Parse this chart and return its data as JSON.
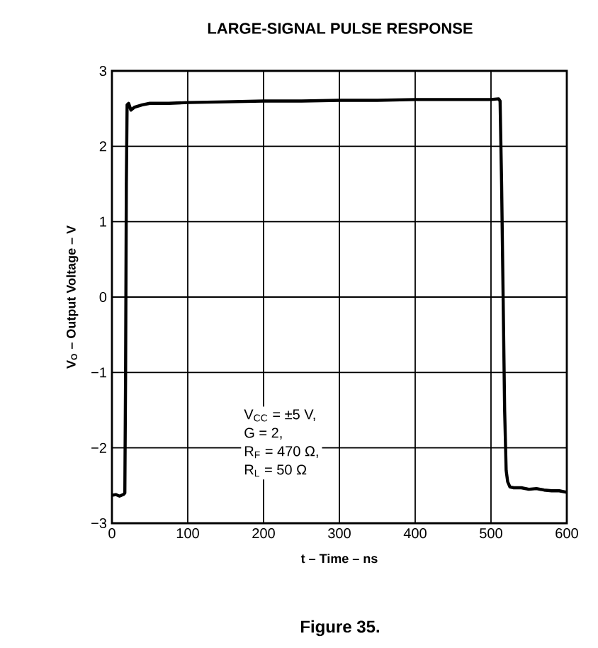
{
  "chart_data": {
    "type": "line",
    "title": "LARGE-SIGNAL PULSE RESPONSE",
    "xlabel": "t – Time – ns",
    "ylabel": "V$_{O}$ – Output Voltage – V",
    "annotations": [
      "V$_{CC}$ = ±5 V,",
      "G = 2,",
      "R$_{F}$ = 470 Ω,",
      "R$_{L}$ = 50 Ω",
      "Figure 35."
    ],
    "series": [
      {
        "color": "#000000",
        "x": [
          0,
          5,
          10,
          15,
          17,
          18,
          19,
          20,
          22,
          25,
          30,
          40,
          50,
          75,
          100,
          150,
          200,
          250,
          300,
          350,
          400,
          450,
          500,
          510,
          512,
          514,
          516,
          518,
          520,
          522,
          525,
          530,
          540,
          550,
          560,
          570,
          580,
          590,
          600
        ],
        "values": [
          -2.63,
          -2.62,
          -2.64,
          -2.62,
          -2.6,
          -1.0,
          1.5,
          2.55,
          2.57,
          2.48,
          2.52,
          2.55,
          2.57,
          2.57,
          2.58,
          2.59,
          2.6,
          2.6,
          2.61,
          2.61,
          2.62,
          2.62,
          2.62,
          2.63,
          2.6,
          1.5,
          0.0,
          -1.5,
          -2.3,
          -2.45,
          -2.52,
          -2.53,
          -2.53,
          -2.55,
          -2.54,
          -2.56,
          -2.57,
          -2.57,
          -2.59
        ]
      }
    ],
    "xlim": [
      0,
      600
    ],
    "ylim": [
      -3,
      3
    ],
    "xticks": [
      0,
      100,
      200,
      300,
      400,
      500,
      600
    ],
    "yticks": [
      {
        "value": -3,
        "label": "−3"
      },
      {
        "value": -2,
        "label": "−2"
      },
      {
        "value": -1,
        "label": "−1"
      },
      0,
      1,
      2,
      3
    ],
    "grid": true,
    "marker": "none",
    "line_style": "solid"
  }
}
